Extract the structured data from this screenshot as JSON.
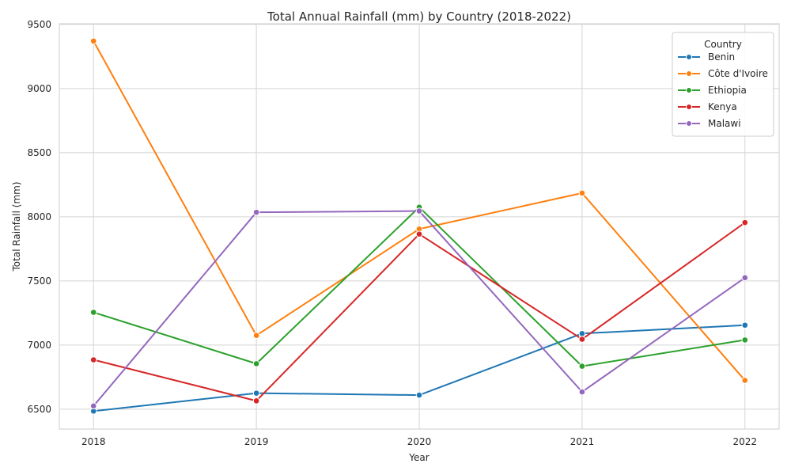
{
  "chart_data": {
    "type": "line",
    "title": "Total Annual Rainfall (mm) by Country (2018-2022)",
    "xlabel": "Year",
    "ylabel": "Total Rainfall (mm)",
    "x": [
      2018,
      2019,
      2020,
      2021,
      2022
    ],
    "x_tick_labels": [
      "2018",
      "2019",
      "2020",
      "2021",
      "2022"
    ],
    "xlim": [
      2017.79,
      2022.21
    ],
    "ylim": [
      6345,
      9505
    ],
    "y_ticks": [
      6500,
      7000,
      7500,
      8000,
      8500,
      9000,
      9500
    ],
    "y_tick_labels": [
      "6500",
      "7000",
      "7500",
      "8000",
      "8500",
      "9000",
      "9500"
    ],
    "grid": true,
    "legend": {
      "title": "Country",
      "placement": "top-right"
    },
    "series": [
      {
        "name": "Benin",
        "color": "#1f77b4",
        "values": [
          6485,
          6625,
          6610,
          7090,
          7155
        ]
      },
      {
        "name": "Côte d'Ivoire",
        "color": "#ff7f0e",
        "values": [
          9370,
          7075,
          7905,
          8185,
          6725
        ]
      },
      {
        "name": "Ethiopia",
        "color": "#2ca02c",
        "values": [
          7255,
          6855,
          8075,
          6835,
          7040
        ]
      },
      {
        "name": "Kenya",
        "color": "#d62728",
        "values": [
          6885,
          6565,
          7865,
          7045,
          7955
        ]
      },
      {
        "name": "Malawi",
        "color": "#9467bd",
        "values": [
          6525,
          8035,
          8045,
          6635,
          7525
        ]
      }
    ]
  }
}
